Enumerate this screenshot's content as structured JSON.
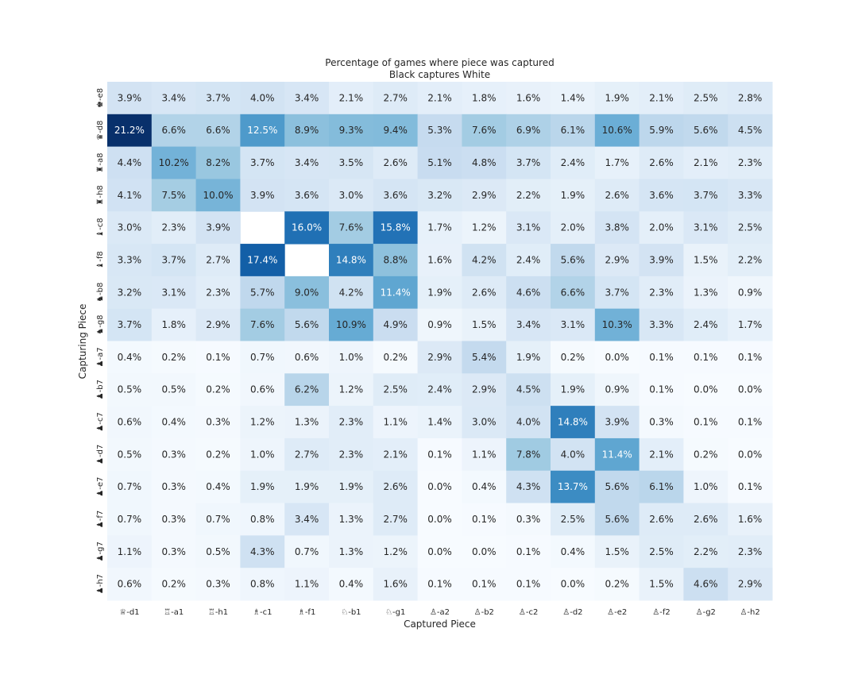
{
  "chart_data": {
    "type": "heatmap",
    "title": "Percentage of games where piece was captured",
    "subtitle": "Black captures White",
    "xlabel": "Captured Piece",
    "ylabel": "Capturing Piece",
    "colormap": "Blues",
    "value_format": "percent_1dp",
    "vmin": 0.0,
    "vmax": 21.2,
    "x_categories": [
      "♕-d1",
      "♖-a1",
      "♖-h1",
      "♗-c1",
      "♗-f1",
      "♘-b1",
      "♘-g1",
      "♙-a2",
      "♙-b2",
      "♙-c2",
      "♙-d2",
      "♙-e2",
      "♙-f2",
      "♙-g2",
      "♙-h2"
    ],
    "y_categories": [
      "♚-e8",
      "♛-d8",
      "♜-a8",
      "♜-h8",
      "♝-c8",
      "♝-f8",
      "♞-b8",
      "♞-g8",
      "♟-a7",
      "♟-b7",
      "♟-c7",
      "♟-d7",
      "♟-e7",
      "♟-f7",
      "♟-g7",
      "♟-h7"
    ],
    "values": [
      [
        3.9,
        3.4,
        3.7,
        4.0,
        3.4,
        2.1,
        2.7,
        2.1,
        1.8,
        1.6,
        1.4,
        1.9,
        2.1,
        2.5,
        2.8
      ],
      [
        21.2,
        6.6,
        6.6,
        12.5,
        8.9,
        9.3,
        9.4,
        5.3,
        7.6,
        6.9,
        6.1,
        10.6,
        5.9,
        5.6,
        4.5
      ],
      [
        4.4,
        10.2,
        8.2,
        3.7,
        3.4,
        3.5,
        2.6,
        5.1,
        4.8,
        3.7,
        2.4,
        1.7,
        2.6,
        2.1,
        2.3
      ],
      [
        4.1,
        7.5,
        10.0,
        3.9,
        3.6,
        3.0,
        3.6,
        3.2,
        2.9,
        2.2,
        1.9,
        2.6,
        3.6,
        3.7,
        3.3
      ],
      [
        3.0,
        2.3,
        3.9,
        null,
        16.0,
        7.6,
        15.8,
        1.7,
        1.2,
        3.1,
        2.0,
        3.8,
        2.0,
        3.1,
        2.5
      ],
      [
        3.3,
        3.7,
        2.7,
        17.4,
        null,
        14.8,
        8.8,
        1.6,
        4.2,
        2.4,
        5.6,
        2.9,
        3.9,
        1.5,
        2.2
      ],
      [
        3.2,
        3.1,
        2.3,
        5.7,
        9.0,
        4.2,
        11.4,
        1.9,
        2.6,
        4.6,
        6.6,
        3.7,
        2.3,
        1.3,
        0.9
      ],
      [
        3.7,
        1.8,
        2.9,
        7.6,
        5.6,
        10.9,
        4.9,
        0.9,
        1.5,
        3.4,
        3.1,
        10.3,
        3.3,
        2.4,
        1.7
      ],
      [
        0.4,
        0.2,
        0.1,
        0.7,
        0.6,
        1.0,
        0.2,
        2.9,
        5.4,
        1.9,
        0.2,
        0.0,
        0.1,
        0.1,
        0.1
      ],
      [
        0.5,
        0.5,
        0.2,
        0.6,
        6.2,
        1.2,
        2.5,
        2.4,
        2.9,
        4.5,
        1.9,
        0.9,
        0.1,
        0.0,
        0.0
      ],
      [
        0.6,
        0.4,
        0.3,
        1.2,
        1.3,
        2.3,
        1.1,
        1.4,
        3.0,
        4.0,
        14.8,
        3.9,
        0.3,
        0.1,
        0.1
      ],
      [
        0.5,
        0.3,
        0.2,
        1.0,
        2.7,
        2.3,
        2.1,
        0.1,
        1.1,
        7.8,
        4.0,
        11.4,
        2.1,
        0.2,
        0.0
      ],
      [
        0.7,
        0.3,
        0.4,
        1.9,
        1.9,
        1.9,
        2.6,
        0.0,
        0.4,
        4.3,
        13.7,
        5.6,
        6.1,
        1.0,
        0.1
      ],
      [
        0.7,
        0.3,
        0.7,
        0.8,
        3.4,
        1.3,
        2.7,
        0.0,
        0.1,
        0.3,
        2.5,
        5.6,
        2.6,
        2.6,
        1.6
      ],
      [
        1.1,
        0.3,
        0.5,
        4.3,
        0.7,
        1.3,
        1.2,
        0.0,
        0.0,
        0.1,
        0.4,
        1.5,
        2.5,
        2.2,
        2.3
      ],
      [
        0.6,
        0.2,
        0.3,
        0.8,
        1.1,
        0.4,
        1.6,
        0.1,
        0.1,
        0.1,
        0.0,
        0.2,
        1.5,
        4.6,
        2.9
      ]
    ]
  }
}
